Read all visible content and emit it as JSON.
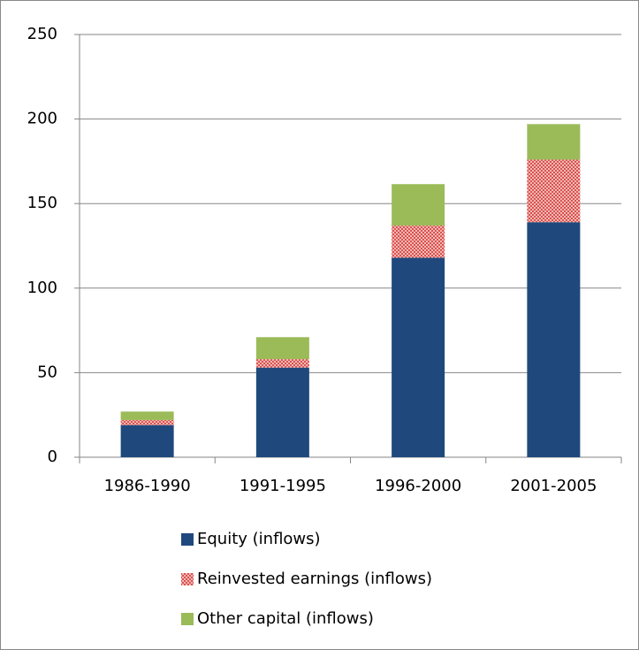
{
  "chart_data": {
    "type": "stacked_bar",
    "categories": [
      "1986-1990",
      "1991-1995",
      "1996-2000",
      "2001-2005"
    ],
    "series": [
      {
        "name": "Equity (inflows)",
        "color": "#1f497d",
        "values": [
          19,
          53,
          118,
          139
        ]
      },
      {
        "name": "Reinvested earnings (inflows)",
        "color": "#c0504d",
        "pattern": "checker",
        "values": [
          3,
          5,
          19,
          37
        ]
      },
      {
        "name": "Other capital (inflows)",
        "color": "#9bbb59",
        "values": [
          5,
          13,
          24.5,
          21
        ]
      }
    ],
    "ylim": [
      0,
      250
    ],
    "yticks": [
      0,
      50,
      100,
      150,
      200,
      250
    ],
    "grid": true,
    "legend": "bottom"
  }
}
